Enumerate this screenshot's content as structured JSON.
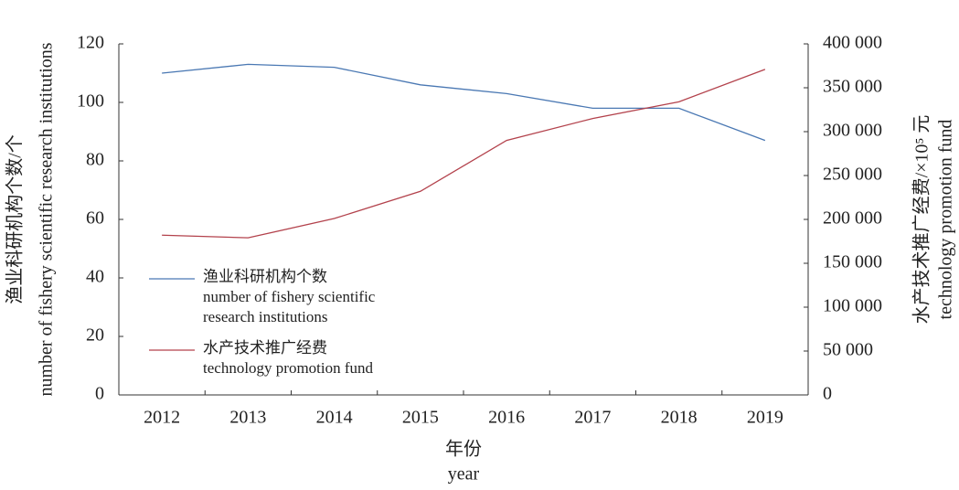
{
  "chart_data": {
    "type": "line",
    "y_label": [
      "渔业科研机构个数/个",
      "number of fishery scientific research institutions"
    ],
    "y2_label": [
      "水产技术推广经费/×10⁵ 元",
      "technology promotion fund"
    ],
    "x_label": [
      "年份",
      "year"
    ],
    "categories": [
      "2012",
      "2013",
      "2014",
      "2015",
      "2016",
      "2017",
      "2018",
      "2019"
    ],
    "series": [
      {
        "name": "渔业科研机构个数\nnumber of fishery scientific\nresearch institutions",
        "color": "#4a78b3",
        "values": [
          110,
          113,
          112,
          106,
          103,
          98,
          98,
          87
        ]
      },
      {
        "name": "水产技术推广经费\ntechnology promotion fund",
        "color": "#b3424c",
        "axis": "y2",
        "values": [
          182000,
          179000,
          201000,
          232000,
          290000,
          315000,
          334000,
          371000
        ]
      }
    ],
    "ylim": [
      0,
      120
    ],
    "yticks": [
      0,
      20,
      40,
      60,
      80,
      100,
      120
    ],
    "y2lim": [
      0,
      400000
    ],
    "y2ticks": [
      0,
      {
        "value": 50000,
        "label": "50 000"
      },
      {
        "value": 100000,
        "label": "100 000"
      },
      {
        "value": 150000,
        "label": "150 000"
      },
      {
        "value": 200000,
        "label": "200 000"
      },
      {
        "value": 250000,
        "label": "250 000"
      },
      {
        "value": 300000,
        "label": "300 000"
      },
      {
        "value": 350000,
        "label": "350 000"
      },
      {
        "value": 400000,
        "label": "400 000"
      }
    ],
    "grid": false,
    "legend": "lower left"
  }
}
